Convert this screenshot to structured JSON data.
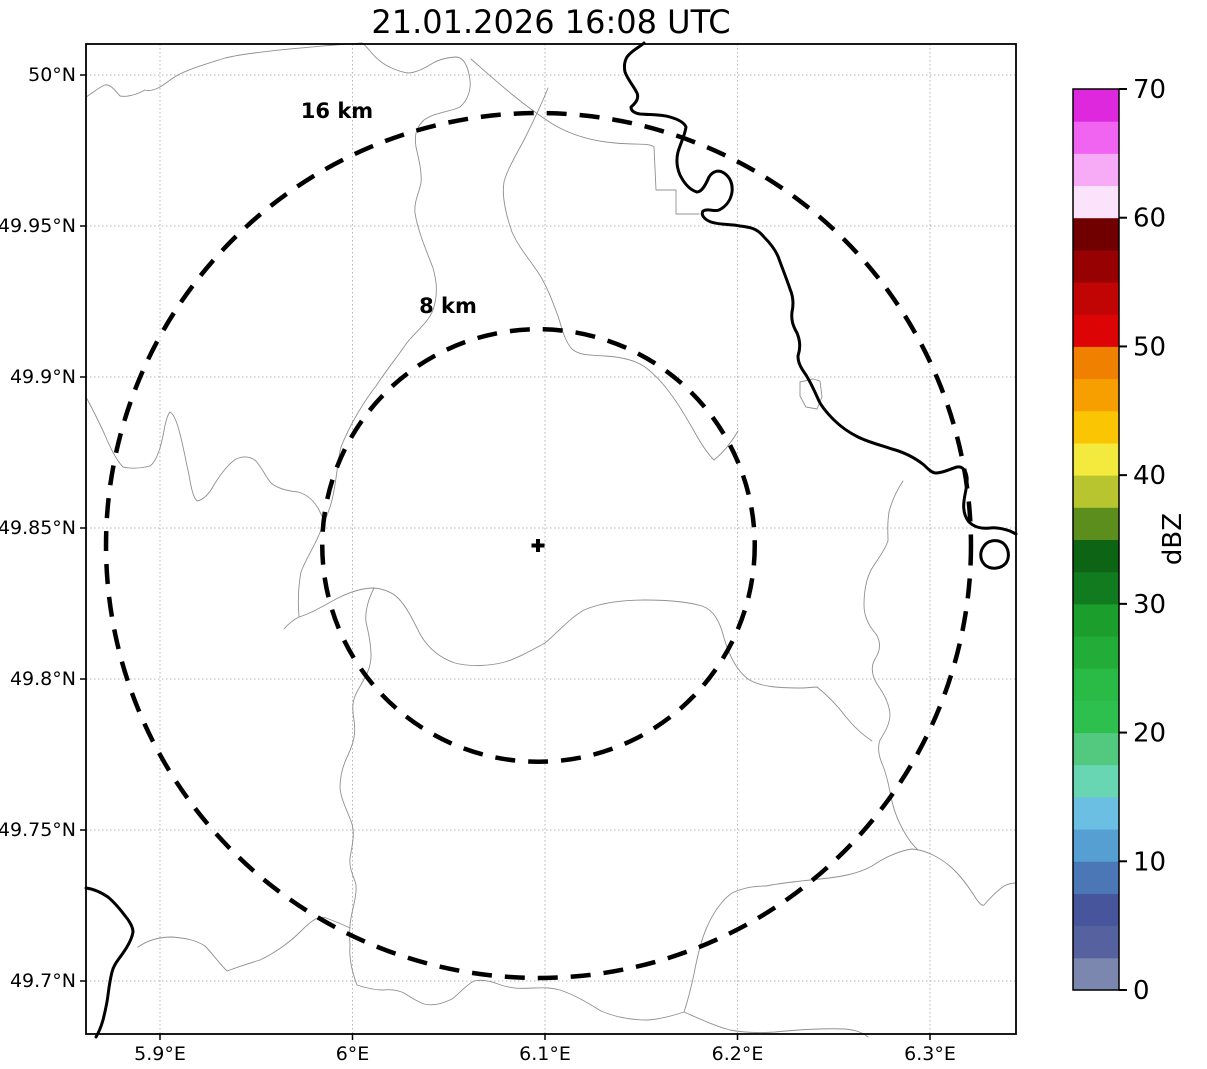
{
  "title": "21.01.2026 16:08 UTC",
  "map": {
    "x_axis": {
      "ticks": [
        {
          "label": "5.9°E",
          "lon": 5.9
        },
        {
          "label": "6°E",
          "lon": 6.0
        },
        {
          "label": "6.1°E",
          "lon": 6.1
        },
        {
          "label": "6.2°E",
          "lon": 6.2
        },
        {
          "label": "6.3°E",
          "lon": 6.3
        }
      ]
    },
    "y_axis": {
      "ticks": [
        {
          "label": "50°N",
          "lat": 50.0
        },
        {
          "label": "49.95°N",
          "lat": 49.95
        },
        {
          "label": "49.9°N",
          "lat": 49.9
        },
        {
          "label": "49.85°N",
          "lat": 49.85
        },
        {
          "label": "49.8°N",
          "lat": 49.8
        },
        {
          "label": "49.75°N",
          "lat": 49.75
        },
        {
          "label": "49.7°N",
          "lat": 49.7
        }
      ]
    },
    "range_rings": [
      {
        "label": "16 km",
        "radius_km": 16
      },
      {
        "label": "8 km",
        "radius_km": 8
      }
    ],
    "center_marker": "+"
  },
  "colorbar": {
    "label": "dBZ",
    "min": 0,
    "max": 70,
    "tick_values": [
      0,
      10,
      20,
      30,
      40,
      50,
      60,
      70
    ],
    "segment_step_dbz": 2.5,
    "colors_bottom_to_top": [
      "#7C87AF",
      "#56629F",
      "#47559C",
      "#4B77B7",
      "#559FD2",
      "#6BBFE2",
      "#68D6B2",
      "#52C97E",
      "#2EC04F",
      "#2ABB46",
      "#22AD38",
      "#1B9E2C",
      "#117B1F",
      "#0D6414",
      "#5C8E1E",
      "#B8C52F",
      "#F4EA3D",
      "#FAC502",
      "#F79E01",
      "#F08000",
      "#DC0404",
      "#C10404",
      "#980101",
      "#700000",
      "#FBE3FB",
      "#F7ABF7",
      "#F163F1",
      "#DE28DE"
    ]
  }
}
